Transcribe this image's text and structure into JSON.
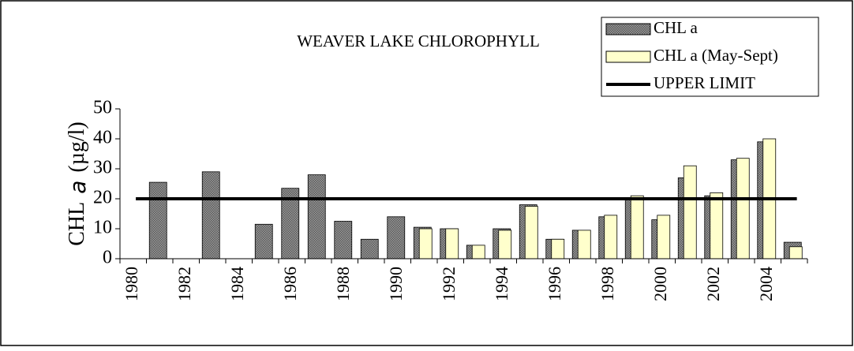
{
  "chart_data": {
    "type": "bar",
    "title": "WEAVER LAKE CHLOROPHYLL",
    "y_label": [
      "CHL",
      "a",
      "(µg/l)"
    ],
    "categories": [
      "1980",
      null,
      "1982",
      null,
      "1984",
      null,
      "1986",
      null,
      "1988",
      null,
      "1990",
      null,
      "1992",
      null,
      "1994",
      null,
      "1996",
      null,
      "1998",
      null,
      "2000",
      null,
      "2002",
      null,
      "2004",
      null
    ],
    "series": [
      {
        "name": "CHL a",
        "color": "#999999",
        "values": [
          null,
          25.5,
          null,
          29,
          null,
          11.5,
          23.5,
          28,
          12.5,
          6.5,
          14,
          10.5,
          10,
          4.5,
          10,
          18,
          6.5,
          9.5,
          14,
          20,
          13,
          27,
          21,
          33,
          39,
          5.5
        ]
      },
      {
        "name": "CHL a (May-Sept)",
        "color": "#ffffcc",
        "values": [
          null,
          null,
          null,
          null,
          null,
          null,
          null,
          null,
          null,
          null,
          null,
          10,
          10,
          4.5,
          9.5,
          17.5,
          6.5,
          9.5,
          14.5,
          21,
          14.5,
          31,
          22,
          33.5,
          40,
          4
        ]
      }
    ],
    "upper_limit": {
      "name": "UPPER LIMIT",
      "value": 20,
      "color": "#000000"
    },
    "ylim": [
      0,
      50
    ],
    "yticks": [
      0,
      10,
      20,
      30,
      40,
      50
    ],
    "legend": "top-right"
  }
}
